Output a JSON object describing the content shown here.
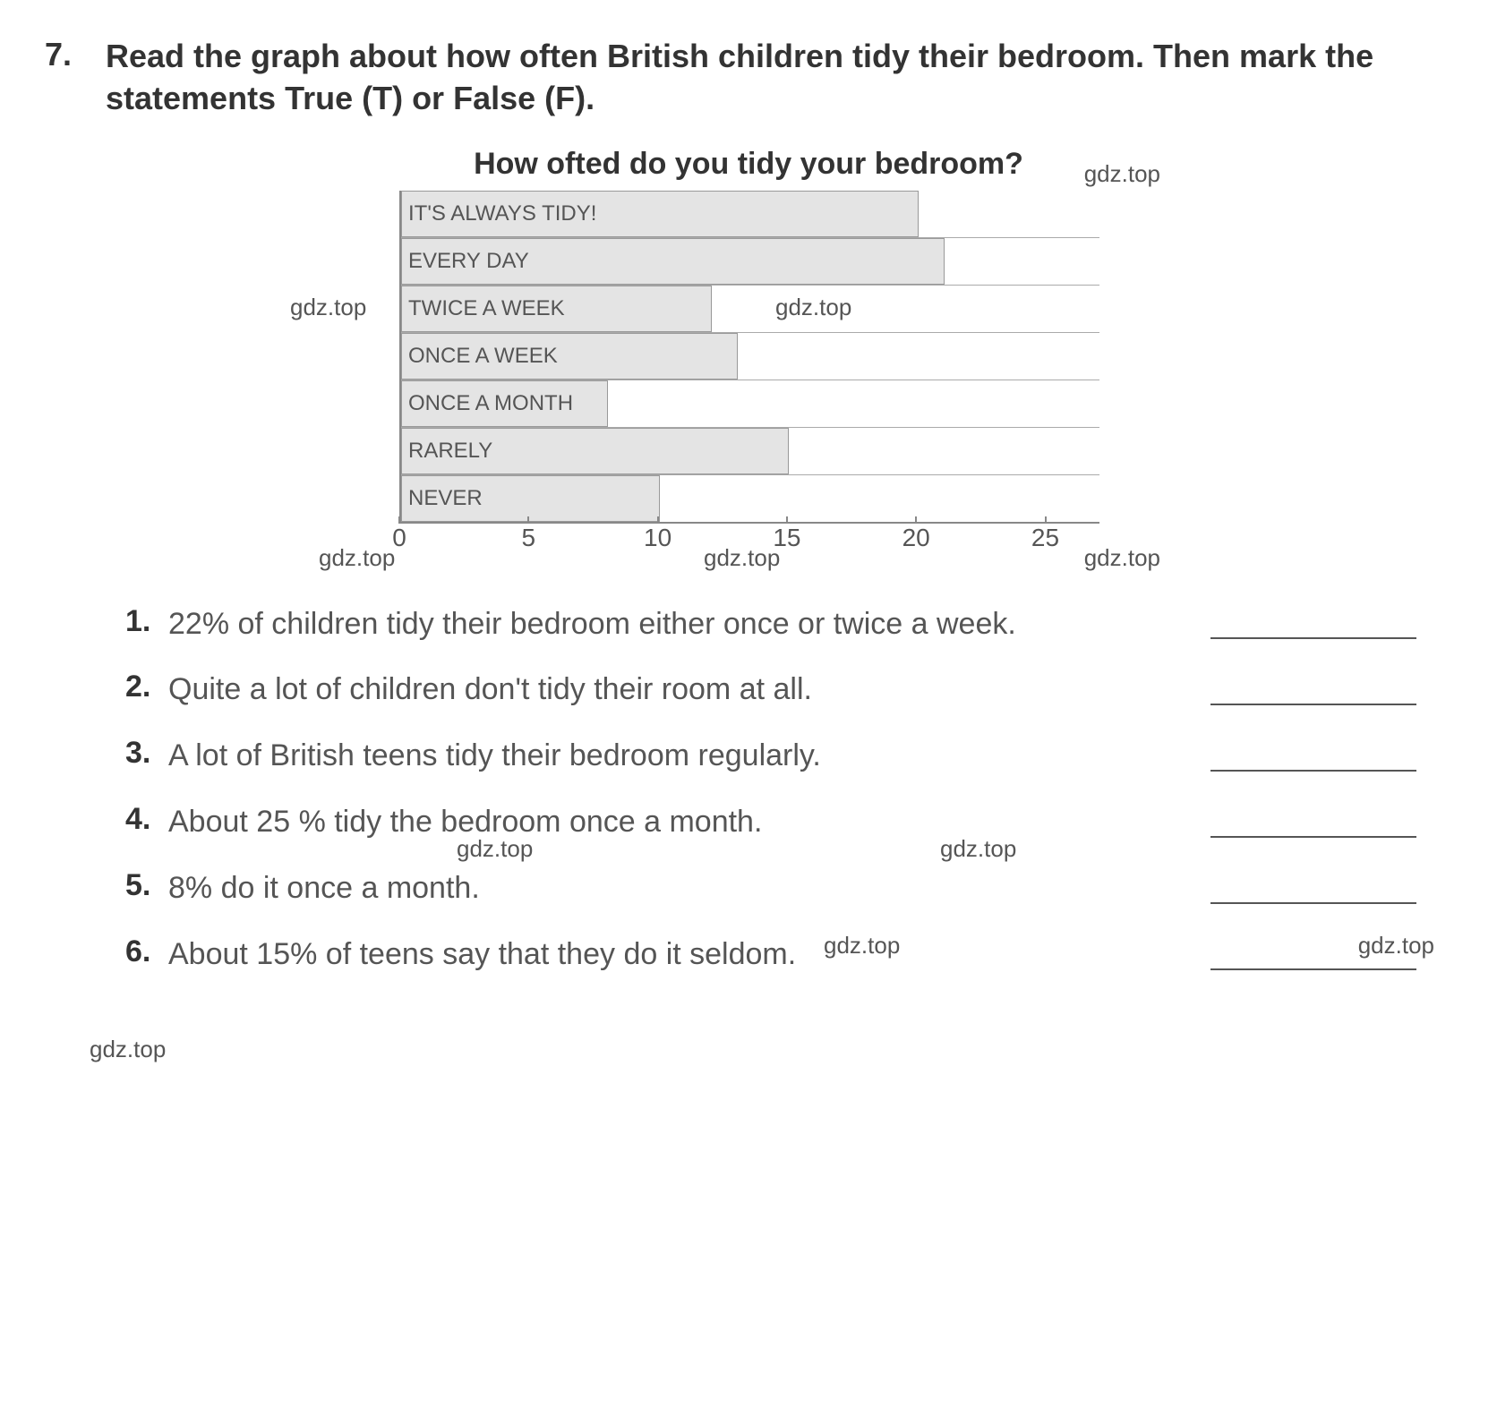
{
  "question": {
    "number": "7.",
    "text": "Read the graph about how often British children tidy their bedroom. Then mark the statements True (T) or False (F)."
  },
  "chart": {
    "title": "How ofted do you tidy your bedroom?",
    "type": "horizontal-bar",
    "xlim": [
      0,
      27
    ],
    "xtick_step": 5,
    "xticks": [
      "0",
      "5",
      "10",
      "15",
      "20",
      "25"
    ],
    "bar_color": "#e4e4e4",
    "bar_border": "#999999",
    "axis_color": "#888888",
    "label_fontsize": 24,
    "tick_fontsize": 28,
    "bars": [
      {
        "label": "IT'S ALWAYS TIDY!",
        "value": 20
      },
      {
        "label": "EVERY DAY",
        "value": 21
      },
      {
        "label": "TWICE A WEEK",
        "value": 12
      },
      {
        "label": "ONCE A WEEK",
        "value": 13
      },
      {
        "label": "ONCE A MONTH",
        "value": 8
      },
      {
        "label": "RARELY",
        "value": 15
      },
      {
        "label": "NEVER",
        "value": 10
      }
    ]
  },
  "statements": [
    {
      "num": "1.",
      "text": "22% of children tidy their bedroom either once or twice a week."
    },
    {
      "num": "2.",
      "text": "Quite a lot of children don't tidy their room at all."
    },
    {
      "num": "3.",
      "text": "A lot of British teens tidy their bedroom regularly."
    },
    {
      "num": "4.",
      "text": "About 25 % tidy the bedroom once a month."
    },
    {
      "num": "5.",
      "text": "8% do it once a month."
    },
    {
      "num": "6.",
      "text": "About 15% of teens say that they do it seldom."
    }
  ],
  "watermarks": {
    "text": "gdz.top",
    "color": "#555555",
    "fontsize": 26
  }
}
